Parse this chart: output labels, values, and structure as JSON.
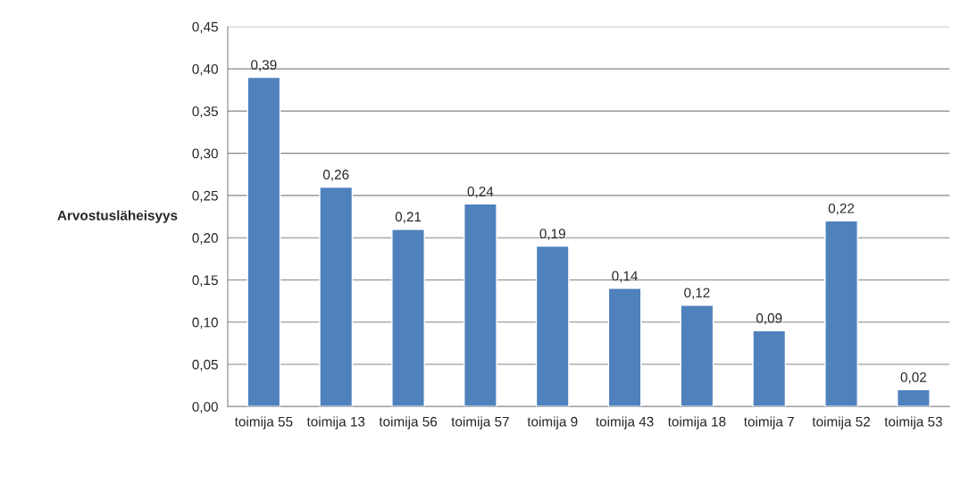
{
  "chart_data": {
    "type": "bar",
    "ylabel": "Arvostusläheisyys",
    "categories": [
      "toimija 55",
      "toimija 13",
      "toimija 56",
      "toimija 57",
      "toimija 9",
      "toimija 43",
      "toimija 18",
      "toimija 7",
      "toimija 52",
      "toimija 53"
    ],
    "values": [
      0.39,
      0.26,
      0.21,
      0.24,
      0.19,
      0.14,
      0.12,
      0.09,
      0.22,
      0.02
    ],
    "value_labels": [
      "0,39",
      "0,26",
      "0,21",
      "0,24",
      "0,19",
      "0,14",
      "0,12",
      "0,09",
      "0,22",
      "0,02"
    ],
    "color": "#4f81bd",
    "ylim": [
      0,
      0.45
    ],
    "yticks": [
      {
        "value": 0,
        "label": "0,00"
      },
      {
        "value": 0.05,
        "label": "0,05"
      },
      {
        "value": 0.1,
        "label": "0,10"
      },
      {
        "value": 0.15,
        "label": "0,15"
      },
      {
        "value": 0.2,
        "label": "0,20"
      },
      {
        "value": 0.25,
        "label": "0,25"
      },
      {
        "value": 0.3,
        "label": "0,30"
      },
      {
        "value": 0.35,
        "label": "0,35"
      },
      {
        "value": 0.4,
        "label": "0,40"
      },
      {
        "value": 0.45,
        "label": "0,45"
      }
    ],
    "grid": "y"
  }
}
